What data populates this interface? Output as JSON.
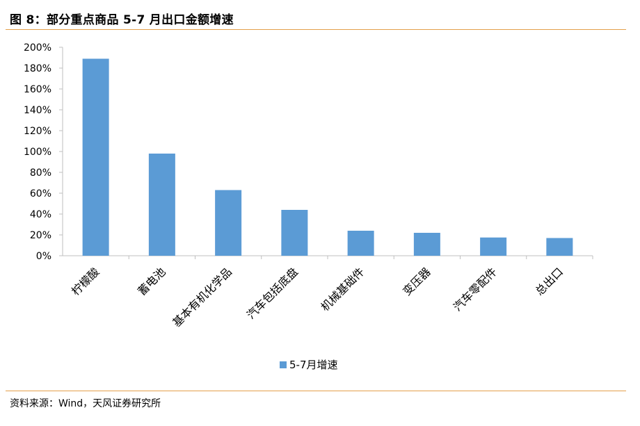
{
  "figure": {
    "title": "图 8：部分重点商品 5-7 月出口金额增速",
    "source": "资料来源：Wind，天风证券研究所"
  },
  "colors": {
    "bar": "#5b9bd5",
    "rule": "#e39f4a",
    "axis": "#bfbfbf"
  },
  "chart_data": {
    "type": "bar",
    "categories": [
      "柠檬酸",
      "蓄电池",
      "基本有机化学品",
      "汽车包括底盘",
      "机械基础件",
      "变压器",
      "汽车零配件",
      "总出口"
    ],
    "series": [
      {
        "name": "5-7月增速",
        "values": [
          189,
          98,
          63,
          44,
          24,
          22,
          17.5,
          17
        ]
      }
    ],
    "value_unit": "%",
    "ylim": [
      0,
      200
    ],
    "ytick_labels": [
      "0%",
      "20%",
      "40%",
      "60%",
      "80%",
      "100%",
      "120%",
      "140%",
      "160%",
      "180%",
      "200%"
    ],
    "grid": false,
    "legend_position": "bottom"
  }
}
